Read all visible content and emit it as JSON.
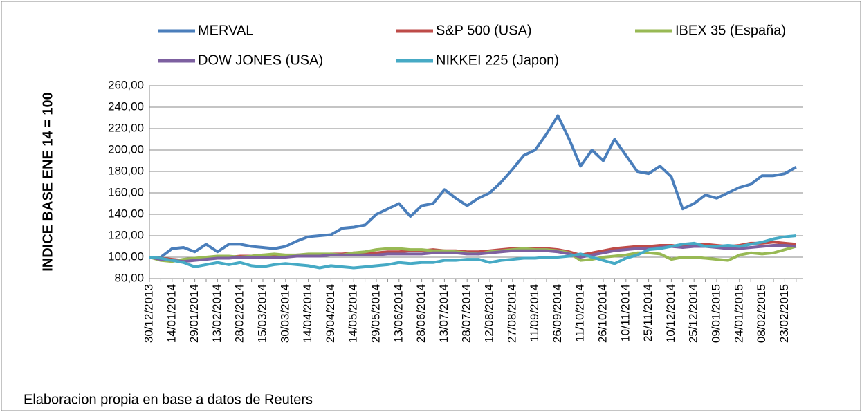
{
  "chart_data": {
    "type": "line",
    "y_label": "INDICE BASE  ENE 14 = 100",
    "source": "Elaboracion propia en base a datos de Reuters",
    "categories": [
      "30/12/2013",
      null,
      "14/01/2014",
      null,
      "29/01/2014",
      null,
      "13/02/2014",
      null,
      "28/02/2014",
      null,
      "15/03/2014",
      null,
      "30/03/2014",
      null,
      "14/04/2014",
      null,
      "29/04/2014",
      null,
      "14/05/2014",
      null,
      "29/05/2014",
      null,
      "13/06/2014",
      null,
      "28/06/2014",
      null,
      "13/07/2014",
      null,
      "28/07/2014",
      null,
      "12/08/2014",
      null,
      "27/08/2014",
      null,
      "11/09/2014",
      null,
      "26/09/2014",
      null,
      "11/10/2014",
      null,
      "26/10/2014",
      null,
      "10/11/2014",
      null,
      "25/11/2014",
      null,
      "10/12/2014",
      null,
      "25/12/2014",
      null,
      "09/01/2015",
      null,
      "24/01/2015",
      null,
      "08/02/2015",
      null,
      "23/02/2015",
      null
    ],
    "series": [
      {
        "name": "MERVAL",
        "color": "#4a7ebb",
        "values": [
          100,
          100,
          108,
          109,
          105,
          112,
          105,
          112,
          112,
          110,
          109,
          108,
          110,
          115,
          119,
          120,
          121,
          127,
          128,
          130,
          140,
          145,
          150,
          138,
          148,
          150,
          163,
          155,
          148,
          155,
          160,
          170,
          182,
          195,
          200,
          215,
          232,
          210,
          185,
          200,
          190,
          210,
          195,
          180,
          178,
          185,
          175,
          145,
          150,
          158,
          155,
          160,
          165,
          168,
          176,
          176,
          178,
          184
        ]
      },
      {
        "name": "S&P 500 (USA)",
        "color": "#be4b48",
        "values": [
          100,
          99,
          98,
          97,
          98,
          99,
          100,
          100,
          101,
          101,
          102,
          101,
          101,
          102,
          102,
          102,
          103,
          103,
          104,
          104,
          104,
          105,
          105,
          106,
          106,
          107,
          106,
          106,
          105,
          105,
          106,
          107,
          108,
          108,
          108,
          108,
          107,
          105,
          102,
          104,
          106,
          108,
          109,
          110,
          110,
          111,
          111,
          110,
          112,
          112,
          111,
          110,
          111,
          113,
          113,
          114,
          113,
          112
        ]
      },
      {
        "name": "IBEX 35 (España)",
        "color": "#98b954",
        "values": [
          100,
          97,
          96,
          98,
          99,
          100,
          101,
          101,
          100,
          101,
          102,
          103,
          102,
          102,
          103,
          103,
          103,
          102,
          104,
          105,
          107,
          108,
          108,
          107,
          107,
          106,
          106,
          105,
          104,
          103,
          105,
          106,
          107,
          108,
          107,
          107,
          106,
          104,
          97,
          98,
          100,
          101,
          102,
          104,
          104,
          103,
          98,
          100,
          100,
          99,
          98,
          97,
          102,
          104,
          103,
          104,
          107,
          110
        ]
      },
      {
        "name": "DOW JONES (USA)",
        "color": "#7d60a0",
        "values": [
          100,
          98,
          97,
          96,
          97,
          98,
          99,
          99,
          100,
          100,
          100,
          100,
          100,
          101,
          101,
          101,
          102,
          102,
          102,
          102,
          102,
          103,
          103,
          103,
          103,
          104,
          104,
          104,
          103,
          103,
          104,
          105,
          106,
          106,
          106,
          106,
          105,
          103,
          100,
          102,
          104,
          106,
          107,
          108,
          108,
          109,
          110,
          109,
          110,
          110,
          109,
          108,
          108,
          109,
          110,
          111,
          111,
          110
        ]
      },
      {
        "name": "NIKKEI 225 (Japon)",
        "color": "#46aac5",
        "values": [
          100,
          99,
          97,
          95,
          91,
          93,
          95,
          93,
          95,
          92,
          91,
          93,
          94,
          93,
          92,
          90,
          92,
          91,
          90,
          91,
          92,
          93,
          95,
          94,
          95,
          95,
          97,
          97,
          98,
          98,
          95,
          97,
          98,
          99,
          99,
          100,
          100,
          101,
          103,
          100,
          97,
          94,
          99,
          102,
          107,
          108,
          110,
          112,
          113,
          110,
          110,
          111,
          110,
          112,
          114,
          117,
          119,
          120
        ]
      }
    ],
    "ylim": [
      80,
      260
    ],
    "yticks": [
      {
        "value": 80,
        "label": "80,00"
      },
      {
        "value": 100,
        "label": "100,00"
      },
      {
        "value": 120,
        "label": "120,00"
      },
      {
        "value": 140,
        "label": "140,00"
      },
      {
        "value": 160,
        "label": "160,00"
      },
      {
        "value": 180,
        "label": "180,00"
      },
      {
        "value": 200,
        "label": "200,00"
      },
      {
        "value": 220,
        "label": "220,00"
      },
      {
        "value": 240,
        "label": "240,00"
      },
      {
        "value": 260,
        "label": "260,00"
      }
    ],
    "grid": true
  }
}
